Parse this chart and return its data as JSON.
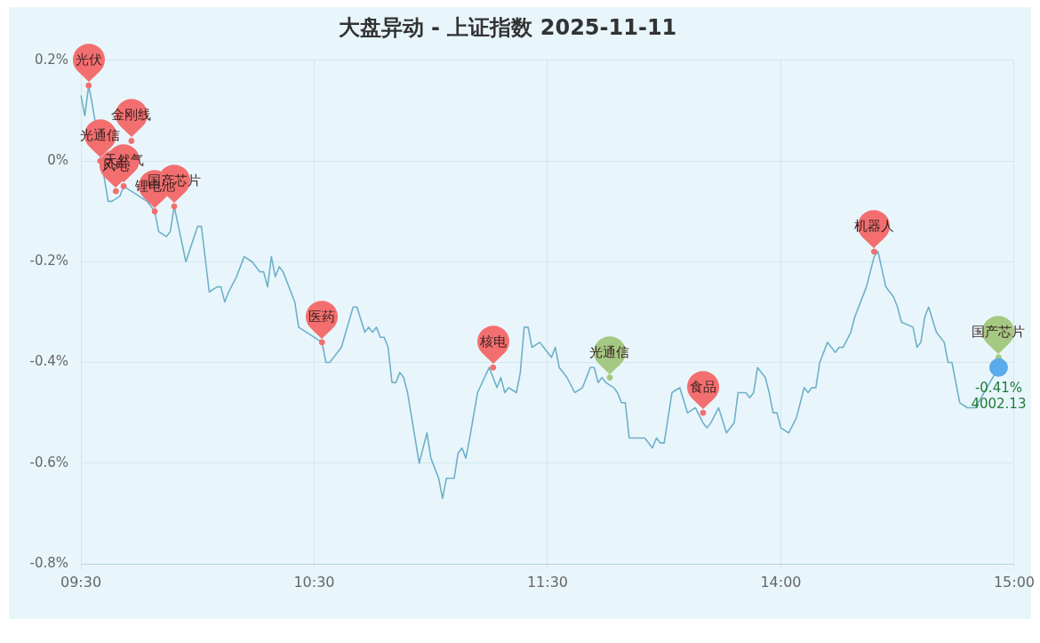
{
  "chart_data": {
    "type": "line",
    "title": "大盘异动 - 上证指数 2025-11-11",
    "categories": [
      "09:30",
      null,
      null,
      null,
      null,
      null,
      null,
      null,
      null,
      null,
      null,
      null,
      null,
      null,
      null,
      null,
      null,
      null,
      null,
      null,
      null,
      null,
      null,
      null,
      null,
      null,
      null,
      null,
      null,
      null,
      null,
      null,
      null,
      null,
      null,
      null,
      null,
      null,
      null,
      null,
      null,
      null,
      null,
      null,
      null,
      null,
      null,
      null,
      null,
      null,
      null,
      null,
      null,
      null,
      null,
      null,
      null,
      null,
      null,
      null,
      "10:30",
      null,
      null,
      null,
      null,
      null,
      null,
      null,
      null,
      null,
      null,
      null,
      null,
      null,
      null,
      null,
      null,
      null,
      null,
      null,
      null,
      null,
      null,
      null,
      null,
      null,
      null,
      null,
      null,
      null,
      null,
      null,
      null,
      null,
      null,
      null,
      null,
      null,
      null,
      null,
      null,
      null,
      null,
      null,
      null,
      null,
      null,
      null,
      null,
      null,
      null,
      null,
      null,
      null,
      null,
      null,
      null,
      null,
      null,
      null,
      "11:30",
      null,
      null,
      null,
      null,
      null,
      null,
      null,
      null,
      null,
      null,
      null,
      null,
      null,
      null,
      null,
      null,
      null,
      null,
      null,
      null,
      null,
      null,
      null,
      null,
      null,
      null,
      null,
      null,
      null,
      null,
      null,
      null,
      null,
      null,
      null,
      null,
      null,
      null,
      null,
      null,
      null,
      null,
      null,
      null,
      null,
      null,
      null,
      null,
      null,
      null,
      null,
      null,
      null,
      null,
      null,
      null,
      null,
      null,
      null,
      "14:00",
      null,
      null,
      null,
      null,
      null,
      null,
      null,
      null,
      null,
      null,
      null,
      null,
      null,
      null,
      null,
      null,
      null,
      null,
      null,
      null,
      null,
      null,
      null,
      null,
      null,
      null,
      null,
      null,
      null,
      null,
      null,
      null,
      null,
      null,
      null,
      null,
      null,
      null,
      null,
      null,
      null,
      null,
      null,
      null,
      null,
      null,
      null,
      null,
      null,
      null,
      null,
      null,
      null,
      null,
      null,
      null,
      null,
      null,
      null,
      "15:00"
    ],
    "ylim": [
      -0.8,
      0.2
    ],
    "yticks": [
      {
        "value": -0.8,
        "label": "-0.8%"
      },
      {
        "value": -0.6,
        "label": "-0.6%"
      },
      {
        "value": -0.4,
        "label": "-0.4%"
      },
      {
        "value": -0.2,
        "label": "-0.2%"
      },
      {
        "value": 0,
        "label": "0%"
      },
      {
        "value": 0.2,
        "label": "0.2%"
      }
    ],
    "grid": true,
    "legend": false,
    "series": [
      {
        "color": "#6fb0c8",
        "values": [
          0.13,
          0.09,
          0.15,
          0.11,
          null,
          null,
          null,
          -0.08,
          -0.08,
          null,
          -0.07,
          -0.05,
          null,
          null,
          null,
          null,
          null,
          -0.08,
          null,
          -0.1,
          -0.14,
          null,
          -0.15,
          -0.14,
          -0.09,
          null,
          null,
          -0.2,
          null,
          null,
          -0.13,
          -0.13,
          null,
          -0.26,
          null,
          -0.25,
          -0.25,
          -0.28,
          -0.26,
          null,
          -0.23,
          null,
          -0.19,
          null,
          -0.2,
          null,
          -0.22,
          -0.22,
          -0.25,
          -0.19,
          -0.23,
          -0.21,
          -0.22,
          null,
          null,
          -0.28,
          -0.33,
          null,
          null,
          null,
          null,
          null,
          -0.36,
          -0.4,
          -0.4,
          null,
          null,
          -0.37,
          null,
          null,
          -0.29,
          -0.29,
          null,
          -0.34,
          -0.33,
          -0.34,
          -0.33,
          -0.35,
          -0.35,
          -0.37,
          -0.44,
          -0.44,
          -0.42,
          -0.43,
          -0.46,
          null,
          null,
          -0.6,
          null,
          -0.54,
          -0.59,
          null,
          -0.63,
          -0.67,
          -0.63,
          null,
          -0.63,
          -0.58,
          -0.57,
          -0.59,
          -0.55,
          null,
          -0.46,
          null,
          null,
          -0.41,
          null,
          -0.45,
          -0.43,
          -0.46,
          -0.45,
          null,
          -0.46,
          -0.42,
          -0.33,
          -0.33,
          -0.37,
          null,
          -0.36,
          -0.37,
          null,
          -0.39,
          -0.37,
          -0.41,
          -0.42,
          -0.43,
          null,
          -0.46,
          null,
          -0.45,
          null,
          -0.41,
          -0.41,
          -0.44,
          -0.43,
          -0.44,
          null,
          -0.45,
          -0.46,
          -0.48,
          -0.48,
          -0.55,
          null,
          null,
          -0.55,
          -0.55,
          null,
          -0.57,
          -0.55,
          -0.56,
          -0.56,
          null,
          -0.46,
          null,
          -0.45,
          null,
          -0.5,
          null,
          -0.49,
          null,
          -0.52,
          -0.53,
          -0.52,
          null,
          -0.49,
          null,
          -0.54,
          null,
          -0.52,
          -0.46,
          null,
          -0.46,
          -0.47,
          -0.46,
          -0.41,
          null,
          -0.43,
          -0.46,
          -0.5,
          -0.5,
          -0.53,
          null,
          -0.54,
          null,
          -0.51,
          null,
          -0.45,
          -0.46,
          -0.45,
          -0.45,
          -0.4,
          null,
          -0.36,
          null,
          -0.38,
          -0.37,
          -0.37,
          null,
          -0.34,
          -0.31,
          null,
          null,
          -0.25,
          -0.22,
          -0.19,
          -0.18,
          null,
          -0.25,
          null,
          -0.27,
          -0.29,
          -0.32,
          null,
          null,
          -0.33,
          -0.37,
          -0.36,
          -0.31,
          -0.29,
          null,
          -0.34,
          null,
          -0.36,
          -0.4,
          -0.4,
          null,
          -0.48,
          null,
          -0.49,
          null,
          -0.49,
          null,
          null,
          null,
          null,
          null,
          -0.41,
          null,
          null,
          null,
          null
        ]
      },
      {
        "type": "scatter",
        "color": "#f36f6f",
        "values": [
          null,
          null,
          0.15,
          null,
          null,
          0.0,
          null,
          null,
          null,
          -0.06,
          null,
          -0.05,
          null,
          0.04,
          null,
          null,
          null,
          null,
          null,
          -0.1,
          null,
          null,
          null,
          null,
          -0.09,
          null,
          null,
          null,
          null,
          null,
          null,
          null,
          null,
          null,
          null,
          null,
          null,
          null,
          null,
          null,
          null,
          null,
          null,
          null,
          null,
          null,
          null,
          null,
          null,
          null,
          null,
          null,
          null,
          null,
          null,
          null,
          null,
          null,
          null,
          null,
          null,
          null,
          -0.36,
          null,
          null,
          null,
          null,
          null,
          null,
          null,
          null,
          null,
          null,
          null,
          null,
          null,
          null,
          null,
          null,
          null,
          null,
          null,
          null,
          null,
          null,
          null,
          null,
          null,
          null,
          null,
          null,
          null,
          null,
          null,
          null,
          null,
          null,
          null,
          null,
          null,
          null,
          null,
          null,
          null,
          null,
          null,
          -0.41,
          null,
          null,
          null,
          null,
          null,
          null,
          null,
          null,
          null,
          null,
          null,
          null,
          null,
          null,
          null,
          null,
          null,
          null,
          null,
          null,
          null,
          null,
          null,
          null,
          null,
          null,
          null,
          null,
          null,
          null,
          null,
          null,
          null,
          null,
          null,
          null,
          null,
          null,
          null,
          null,
          null,
          null,
          null,
          null,
          null,
          null,
          null,
          null,
          null,
          null,
          null,
          null,
          null,
          -0.5,
          null,
          null,
          null,
          null,
          null,
          null,
          null,
          null,
          null,
          null,
          null,
          null,
          null,
          null,
          null,
          null,
          null,
          null,
          null,
          null,
          null,
          null,
          null,
          null,
          null,
          null,
          null,
          null,
          null,
          null,
          null,
          null,
          null,
          null,
          null,
          null,
          null,
          null,
          null,
          null,
          null,
          null,
          null,
          -0.18,
          null,
          null,
          null,
          null,
          null,
          null,
          null,
          null,
          null,
          null,
          null,
          null,
          null,
          null,
          null,
          null,
          null,
          null,
          null,
          null,
          null,
          null,
          null,
          null,
          null,
          null,
          null,
          null,
          null,
          null,
          null,
          null,
          null,
          null,
          null,
          null
        ],
        "value_labels": [
          null,
          null,
          "光伏",
          null,
          null,
          "光通信",
          null,
          null,
          null,
          "风电",
          null,
          "天然气",
          null,
          "金刚线",
          null,
          null,
          null,
          null,
          null,
          "锂电池",
          null,
          null,
          null,
          null,
          "国产芯片",
          null,
          null,
          null,
          null,
          null,
          null,
          null,
          null,
          null,
          null,
          null,
          null,
          null,
          null,
          null,
          null,
          null,
          null,
          null,
          null,
          null,
          null,
          null,
          null,
          null,
          null,
          null,
          null,
          null,
          null,
          null,
          null,
          null,
          null,
          null,
          null,
          null,
          "医药",
          null,
          null,
          null,
          null,
          null,
          null,
          null,
          null,
          null,
          null,
          null,
          null,
          null,
          null,
          null,
          null,
          null,
          null,
          null,
          null,
          null,
          null,
          null,
          null,
          null,
          null,
          null,
          null,
          null,
          null,
          null,
          null,
          null,
          null,
          null,
          null,
          null,
          null,
          null,
          null,
          null,
          null,
          null,
          "核电",
          null,
          null,
          null,
          null,
          null,
          null,
          null,
          null,
          null,
          null,
          null,
          null,
          null,
          null,
          null,
          null,
          null,
          null,
          null,
          null,
          null,
          null,
          null,
          null,
          null,
          null,
          null,
          null,
          null,
          null,
          null,
          null,
          null,
          null,
          null,
          null,
          null,
          null,
          null,
          null,
          null,
          null,
          null,
          null,
          null,
          null,
          null,
          null,
          null,
          null,
          null,
          null,
          null,
          "食品",
          null,
          null,
          null,
          null,
          null,
          null,
          null,
          null,
          null,
          null,
          null,
          null,
          null,
          null,
          null,
          null,
          null,
          null,
          null,
          null,
          null,
          null,
          null,
          null,
          null,
          null,
          null,
          null,
          null,
          null,
          null,
          null,
          null,
          null,
          null,
          null,
          null,
          null,
          null,
          null,
          null,
          null,
          null,
          "机器人",
          null,
          null,
          null,
          null,
          null,
          null,
          null,
          null,
          null,
          null,
          null,
          null,
          null,
          null,
          null,
          null,
          null,
          null,
          null,
          null,
          null,
          null,
          null,
          null,
          null,
          null,
          null,
          null,
          null,
          null,
          null,
          null,
          null,
          null,
          null,
          null
        ]
      },
      {
        "type": "scatter",
        "color": "#a5c882",
        "values": [
          null,
          null,
          null,
          null,
          null,
          null,
          null,
          null,
          null,
          null,
          null,
          null,
          null,
          null,
          null,
          null,
          null,
          null,
          null,
          null,
          null,
          null,
          null,
          null,
          null,
          null,
          null,
          null,
          null,
          null,
          null,
          null,
          null,
          null,
          null,
          null,
          null,
          null,
          null,
          null,
          null,
          null,
          null,
          null,
          null,
          null,
          null,
          null,
          null,
          null,
          null,
          null,
          null,
          null,
          null,
          null,
          null,
          null,
          null,
          null,
          null,
          null,
          null,
          null,
          null,
          null,
          null,
          null,
          null,
          null,
          null,
          null,
          null,
          null,
          null,
          null,
          null,
          null,
          null,
          null,
          null,
          null,
          null,
          null,
          null,
          null,
          null,
          null,
          null,
          null,
          null,
          null,
          null,
          null,
          null,
          null,
          null,
          null,
          null,
          null,
          null,
          null,
          null,
          null,
          null,
          null,
          null,
          null,
          null,
          null,
          null,
          null,
          null,
          null,
          null,
          null,
          null,
          null,
          null,
          null,
          null,
          null,
          null,
          null,
          null,
          null,
          null,
          null,
          null,
          null,
          null,
          null,
          null,
          null,
          null,
          null,
          -0.43,
          null,
          null,
          null,
          null,
          null,
          null,
          null,
          null,
          null,
          null,
          null,
          null,
          null,
          null,
          null,
          null,
          null,
          null,
          null,
          null,
          null,
          null,
          null,
          null,
          null,
          null,
          null,
          null,
          null,
          null,
          null,
          null,
          null,
          null,
          null,
          null,
          null,
          null,
          null,
          null,
          null,
          null,
          null,
          null,
          null,
          null,
          null,
          null,
          null,
          null,
          null,
          null,
          null,
          null,
          null,
          null,
          null,
          null,
          null,
          null,
          null,
          null,
          null,
          null,
          null,
          null,
          null,
          null,
          null,
          null,
          null,
          null,
          null,
          null,
          null,
          null,
          null,
          null,
          null,
          null,
          null,
          null,
          null,
          null,
          null,
          null,
          null,
          null,
          null,
          null,
          null,
          null,
          null,
          null,
          null,
          null,
          null,
          null,
          null,
          -0.39,
          null,
          null,
          null,
          null
        ],
        "value_labels": [
          null,
          null,
          null,
          null,
          null,
          null,
          null,
          null,
          null,
          null,
          null,
          null,
          null,
          null,
          null,
          null,
          null,
          null,
          null,
          null,
          null,
          null,
          null,
          null,
          null,
          null,
          null,
          null,
          null,
          null,
          null,
          null,
          null,
          null,
          null,
          null,
          null,
          null,
          null,
          null,
          null,
          null,
          null,
          null,
          null,
          null,
          null,
          null,
          null,
          null,
          null,
          null,
          null,
          null,
          null,
          null,
          null,
          null,
          null,
          null,
          null,
          null,
          null,
          null,
          null,
          null,
          null,
          null,
          null,
          null,
          null,
          null,
          null,
          null,
          null,
          null,
          null,
          null,
          null,
          null,
          null,
          null,
          null,
          null,
          null,
          null,
          null,
          null,
          null,
          null,
          null,
          null,
          null,
          null,
          null,
          null,
          null,
          null,
          null,
          null,
          null,
          null,
          null,
          null,
          null,
          null,
          null,
          null,
          null,
          null,
          null,
          null,
          null,
          null,
          null,
          null,
          null,
          null,
          null,
          null,
          null,
          null,
          null,
          null,
          null,
          null,
          null,
          null,
          null,
          null,
          null,
          null,
          null,
          null,
          null,
          null,
          "光通信",
          null,
          null,
          null,
          null,
          null,
          null,
          null,
          null,
          null,
          null,
          null,
          null,
          null,
          null,
          null,
          null,
          null,
          null,
          null,
          null,
          null,
          null,
          null,
          null,
          null,
          null,
          null,
          null,
          null,
          null,
          null,
          null,
          null,
          null,
          null,
          null,
          null,
          null,
          null,
          null,
          null,
          null,
          null,
          null,
          null,
          null,
          null,
          null,
          null,
          null,
          null,
          null,
          null,
          null,
          null,
          null,
          null,
          null,
          null,
          null,
          null,
          null,
          null,
          null,
          null,
          null,
          null,
          null,
          null,
          null,
          null,
          null,
          null,
          null,
          null,
          null,
          null,
          null,
          null,
          null,
          null,
          null,
          null,
          null,
          null,
          null,
          null,
          null,
          null,
          null,
          null,
          null,
          null,
          null,
          null,
          null,
          null,
          null,
          null,
          "国产芯片",
          null,
          null,
          null,
          null
        ]
      },
      {
        "type": "scatter",
        "color": "#5aabec",
        "marker": "circle",
        "values": [
          null,
          null,
          null,
          null,
          null,
          null,
          null,
          null,
          null,
          null,
          null,
          null,
          null,
          null,
          null,
          null,
          null,
          null,
          null,
          null,
          null,
          null,
          null,
          null,
          null,
          null,
          null,
          null,
          null,
          null,
          null,
          null,
          null,
          null,
          null,
          null,
          null,
          null,
          null,
          null,
          null,
          null,
          null,
          null,
          null,
          null,
          null,
          null,
          null,
          null,
          null,
          null,
          null,
          null,
          null,
          null,
          null,
          null,
          null,
          null,
          null,
          null,
          null,
          null,
          null,
          null,
          null,
          null,
          null,
          null,
          null,
          null,
          null,
          null,
          null,
          null,
          null,
          null,
          null,
          null,
          null,
          null,
          null,
          null,
          null,
          null,
          null,
          null,
          null,
          null,
          null,
          null,
          null,
          null,
          null,
          null,
          null,
          null,
          null,
          null,
          null,
          null,
          null,
          null,
          null,
          null,
          null,
          null,
          null,
          null,
          null,
          null,
          null,
          null,
          null,
          null,
          null,
          null,
          null,
          null,
          null,
          null,
          null,
          null,
          null,
          null,
          null,
          null,
          null,
          null,
          null,
          null,
          null,
          null,
          null,
          null,
          null,
          null,
          null,
          null,
          null,
          null,
          null,
          null,
          null,
          null,
          null,
          null,
          null,
          null,
          null,
          null,
          null,
          null,
          null,
          null,
          null,
          null,
          null,
          null,
          null,
          null,
          null,
          null,
          null,
          null,
          null,
          null,
          null,
          null,
          null,
          null,
          null,
          null,
          null,
          null,
          null,
          null,
          null,
          null,
          null,
          null,
          null,
          null,
          null,
          null,
          null,
          null,
          null,
          null,
          null,
          null,
          null,
          null,
          null,
          null,
          null,
          null,
          null,
          null,
          null,
          null,
          null,
          null,
          null,
          null,
          null,
          null,
          null,
          null,
          null,
          null,
          null,
          null,
          null,
          null,
          null,
          null,
          null,
          null,
          null,
          null,
          null,
          null,
          null,
          null,
          null,
          null,
          null,
          null,
          null,
          null,
          null,
          null,
          null,
          null,
          -0.41,
          null,
          null,
          null,
          null
        ],
        "value_labels": [
          null,
          null,
          null,
          null,
          null,
          null,
          null,
          null,
          null,
          null,
          null,
          null,
          null,
          null,
          null,
          null,
          null,
          null,
          null,
          null,
          null,
          null,
          null,
          null,
          null,
          null,
          null,
          null,
          null,
          null,
          null,
          null,
          null,
          null,
          null,
          null,
          null,
          null,
          null,
          null,
          null,
          null,
          null,
          null,
          null,
          null,
          null,
          null,
          null,
          null,
          null,
          null,
          null,
          null,
          null,
          null,
          null,
          null,
          null,
          null,
          null,
          null,
          null,
          null,
          null,
          null,
          null,
          null,
          null,
          null,
          null,
          null,
          null,
          null,
          null,
          null,
          null,
          null,
          null,
          null,
          null,
          null,
          null,
          null,
          null,
          null,
          null,
          null,
          null,
          null,
          null,
          null,
          null,
          null,
          null,
          null,
          null,
          null,
          null,
          null,
          null,
          null,
          null,
          null,
          null,
          null,
          null,
          null,
          null,
          null,
          null,
          null,
          null,
          null,
          null,
          null,
          null,
          null,
          null,
          null,
          null,
          null,
          null,
          null,
          null,
          null,
          null,
          null,
          null,
          null,
          null,
          null,
          null,
          null,
          null,
          null,
          null,
          null,
          null,
          null,
          null,
          null,
          null,
          null,
          null,
          null,
          null,
          null,
          null,
          null,
          null,
          null,
          null,
          null,
          null,
          null,
          null,
          null,
          null,
          null,
          null,
          null,
          null,
          null,
          null,
          null,
          null,
          null,
          null,
          null,
          null,
          null,
          null,
          null,
          null,
          null,
          null,
          null,
          null,
          null,
          null,
          null,
          null,
          null,
          null,
          null,
          null,
          null,
          null,
          null,
          null,
          null,
          null,
          null,
          null,
          null,
          null,
          null,
          null,
          null,
          null,
          null,
          null,
          null,
          null,
          null,
          null,
          null,
          null,
          null,
          null,
          null,
          null,
          null,
          null,
          null,
          null,
          null,
          null,
          null,
          null,
          null,
          null,
          null,
          null,
          null,
          null,
          null,
          null,
          null,
          null,
          null,
          null,
          null,
          null,
          null,
          "-0.41%",
          null,
          null,
          null,
          null
        ]
      }
    ],
    "annotations": [
      "4002.13"
    ]
  }
}
